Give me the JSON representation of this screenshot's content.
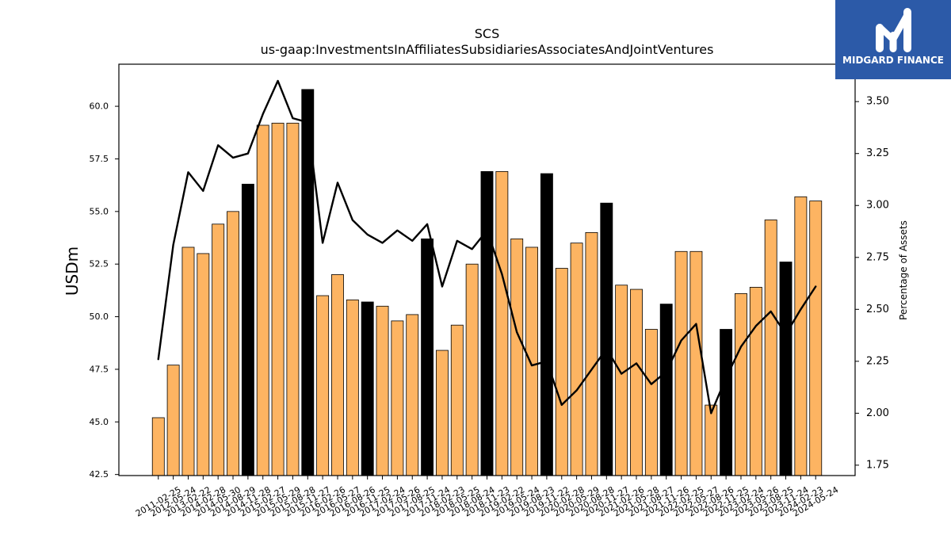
{
  "logo": {
    "text": "MIDGARD FINANCE",
    "background": "#2c5aa8",
    "icon": "midgard-m-icon"
  },
  "chart_data": {
    "type": "bar",
    "title": "SCS",
    "subtitle": "us-gaap:InvestmentsInAffiliatesSubsidiariesAssociatesAndJointVentures",
    "xlabel": "",
    "ylabel": "USDm",
    "ylabel_right": "Percentage of Assets",
    "ylim": [
      42.45,
      62.0
    ],
    "ylim_right": [
      1.7,
      3.68
    ],
    "yticks": [
      "42.5",
      "45.0",
      "47.5",
      "50.0",
      "52.5",
      "55.0",
      "57.5",
      "60.0"
    ],
    "yticks_right": [
      "1.75",
      "2.00",
      "2.25",
      "2.50",
      "2.75",
      "3.00",
      "3.25",
      "3.50"
    ],
    "grid": false,
    "legend": "none",
    "categories": [
      "2011-02-25",
      "2012-05-24",
      "2013-02-22",
      "2014-02-28",
      "2014-05-30",
      "2014-08-29",
      "2014-11-28",
      "2015-02-27",
      "2015-05-29",
      "2015-08-28",
      "2015-11-27",
      "2016-02-26",
      "2016-05-27",
      "2016-08-26",
      "2016-11-25",
      "2017-02-24",
      "2017-05-26",
      "2017-08-25",
      "2017-11-24",
      "2018-02-23",
      "2018-05-25",
      "2018-08-24",
      "2018-11-23",
      "2019-02-22",
      "2019-05-24",
      "2019-08-23",
      "2019-11-22",
      "2020-02-28",
      "2020-05-29",
      "2020-08-28",
      "2020-11-27",
      "2021-02-26",
      "2021-05-28",
      "2021-08-27",
      "2021-11-26",
      "2022-02-25",
      "2022-05-27",
      "2022-08-26",
      "2022-11-25",
      "2023-02-24",
      "2023-05-26",
      "2023-08-25",
      "2023-11-24",
      "2024-02-23",
      "2024-05-24"
    ],
    "series": [
      {
        "type": "bar",
        "axis": "left",
        "values": [
          45.2,
          47.7,
          53.3,
          53.0,
          54.4,
          55.0,
          56.3,
          59.1,
          59.2,
          59.2,
          60.8,
          51.0,
          52.0,
          50.8,
          50.7,
          50.5,
          49.8,
          50.1,
          53.7,
          48.4,
          49.6,
          52.5,
          56.9,
          56.9,
          53.7,
          53.3,
          56.8,
          52.3,
          53.5,
          54.0,
          55.4,
          51.5,
          51.3,
          49.4,
          50.6,
          53.1,
          53.1,
          45.8,
          49.4,
          51.1,
          51.4,
          54.6,
          52.6,
          55.7,
          55.5
        ],
        "colors": [
          "#FDB462",
          "#FDB462",
          "#FDB462",
          "#FDB462",
          "#FDB462",
          "#FDB462",
          "#000000",
          "#FDB462",
          "#FDB462",
          "#FDB462",
          "#000000",
          "#FDB462",
          "#FDB462",
          "#FDB462",
          "#000000",
          "#FDB462",
          "#FDB462",
          "#FDB462",
          "#000000",
          "#FDB462",
          "#FDB462",
          "#FDB462",
          "#000000",
          "#FDB462",
          "#FDB462",
          "#FDB462",
          "#000000",
          "#FDB462",
          "#FDB462",
          "#FDB462",
          "#000000",
          "#FDB462",
          "#FDB462",
          "#FDB462",
          "#000000",
          "#FDB462",
          "#FDB462",
          "#FDB462",
          "#000000",
          "#FDB462",
          "#FDB462",
          "#FDB462",
          "#000000",
          "#FDB462",
          "#FDB462"
        ]
      },
      {
        "type": "line",
        "axis": "right",
        "color": "#000000",
        "values": [
          2.26,
          2.81,
          3.16,
          3.07,
          3.29,
          3.23,
          3.25,
          3.44,
          3.6,
          3.42,
          3.4,
          2.82,
          3.11,
          2.93,
          2.86,
          2.82,
          2.88,
          2.83,
          2.91,
          2.61,
          2.83,
          2.79,
          2.88,
          2.67,
          2.39,
          2.23,
          2.25,
          2.04,
          2.11,
          2.21,
          2.31,
          2.19,
          2.24,
          2.14,
          2.2,
          2.35,
          2.43,
          2.0,
          2.17,
          2.32,
          2.42,
          2.49,
          2.38,
          2.5,
          2.61
        ]
      }
    ]
  }
}
